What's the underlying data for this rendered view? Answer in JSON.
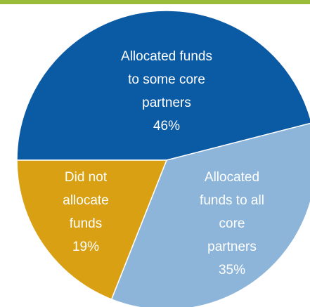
{
  "chart_data": {
    "type": "pie",
    "categories": [
      "Allocated funds\nto some core\npartners",
      "Allocated\nfunds to all core\npartners",
      "Did not\nallocate\nfunds"
    ],
    "values": [
      46,
      35,
      19
    ],
    "value_labels": [
      "46%",
      "35%",
      "19%"
    ],
    "colors": [
      "#0b5aa4",
      "#8db5d9",
      "#d8a012"
    ]
  }
}
